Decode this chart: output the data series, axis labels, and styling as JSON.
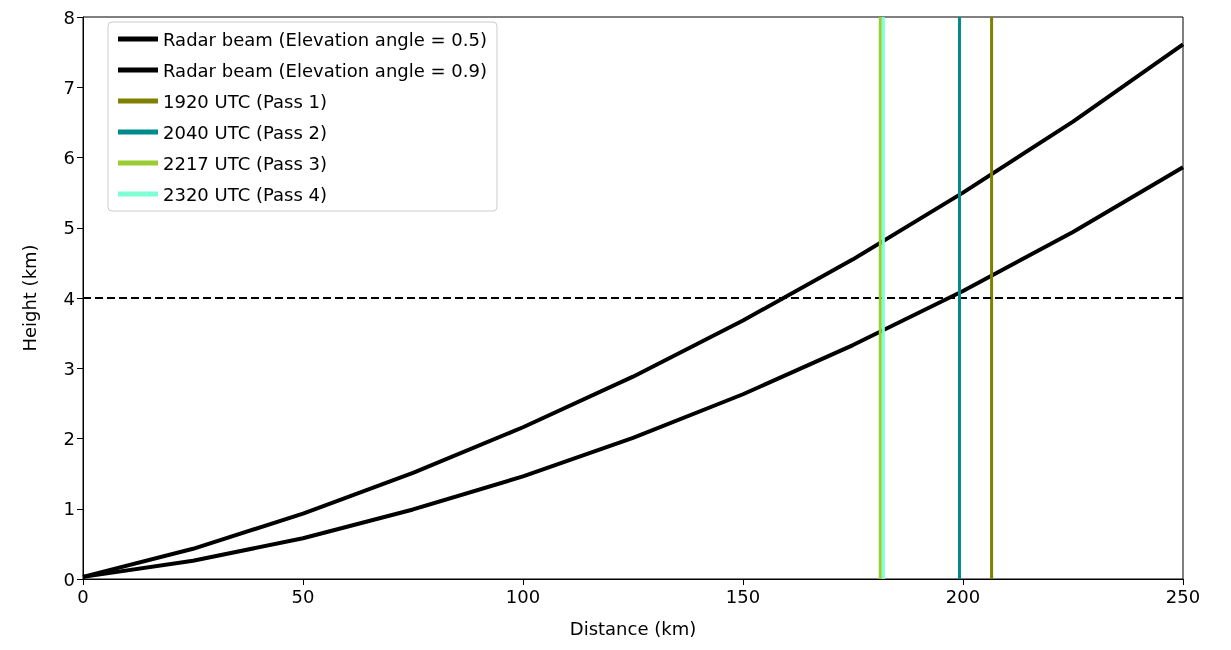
{
  "chart_data": {
    "type": "line",
    "xlabel": "Distance (km)",
    "ylabel": "Height (km)",
    "x": [
      0,
      25,
      50,
      75,
      100,
      125,
      150,
      175,
      200,
      225,
      250
    ],
    "series": [
      {
        "name": "Radar beam (Elevation angle = 0.5)",
        "color": "#000000",
        "values": [
          0.03,
          0.26,
          0.58,
          0.99,
          1.46,
          2.01,
          2.63,
          3.33,
          4.1,
          4.94,
          5.86
        ]
      },
      {
        "name": "Radar beam (Elevation angle = 0.9)",
        "color": "#000000",
        "values": [
          0.03,
          0.43,
          0.93,
          1.51,
          2.16,
          2.88,
          3.68,
          4.55,
          5.5,
          6.51,
          7.61
        ]
      },
      {
        "name": "1920 UTC (Pass 1)",
        "color": "#808000",
        "x": [
          206.5,
          206.5
        ],
        "values": [
          0,
          8
        ]
      },
      {
        "name": "2040 UTC (Pass 2)",
        "color": "#008b8b",
        "x": [
          199.2,
          199.2
        ],
        "values": [
          0,
          8
        ]
      },
      {
        "name": "2217 UTC (Pass 3)",
        "color": "#9acd32",
        "x": [
          181.2,
          181.2
        ],
        "values": [
          0,
          8
        ]
      },
      {
        "name": "2320 UTC (Pass 4)",
        "color": "#7fffd4",
        "x": [
          181.9,
          181.9
        ],
        "values": [
          0,
          8
        ]
      }
    ],
    "xlim": [
      0,
      250
    ],
    "xticks": [
      0,
      50,
      100,
      150,
      200,
      250
    ],
    "ylim": [
      0,
      8
    ],
    "yticks": [
      0,
      1,
      2,
      3,
      4,
      5,
      6,
      7,
      8
    ],
    "ref_lines": [
      {
        "axis": "y",
        "value": 4,
        "color": "#000000",
        "line_style": "dashed"
      }
    ],
    "grid": false,
    "legend": "top left",
    "marker": "none",
    "line_style": "solid"
  }
}
